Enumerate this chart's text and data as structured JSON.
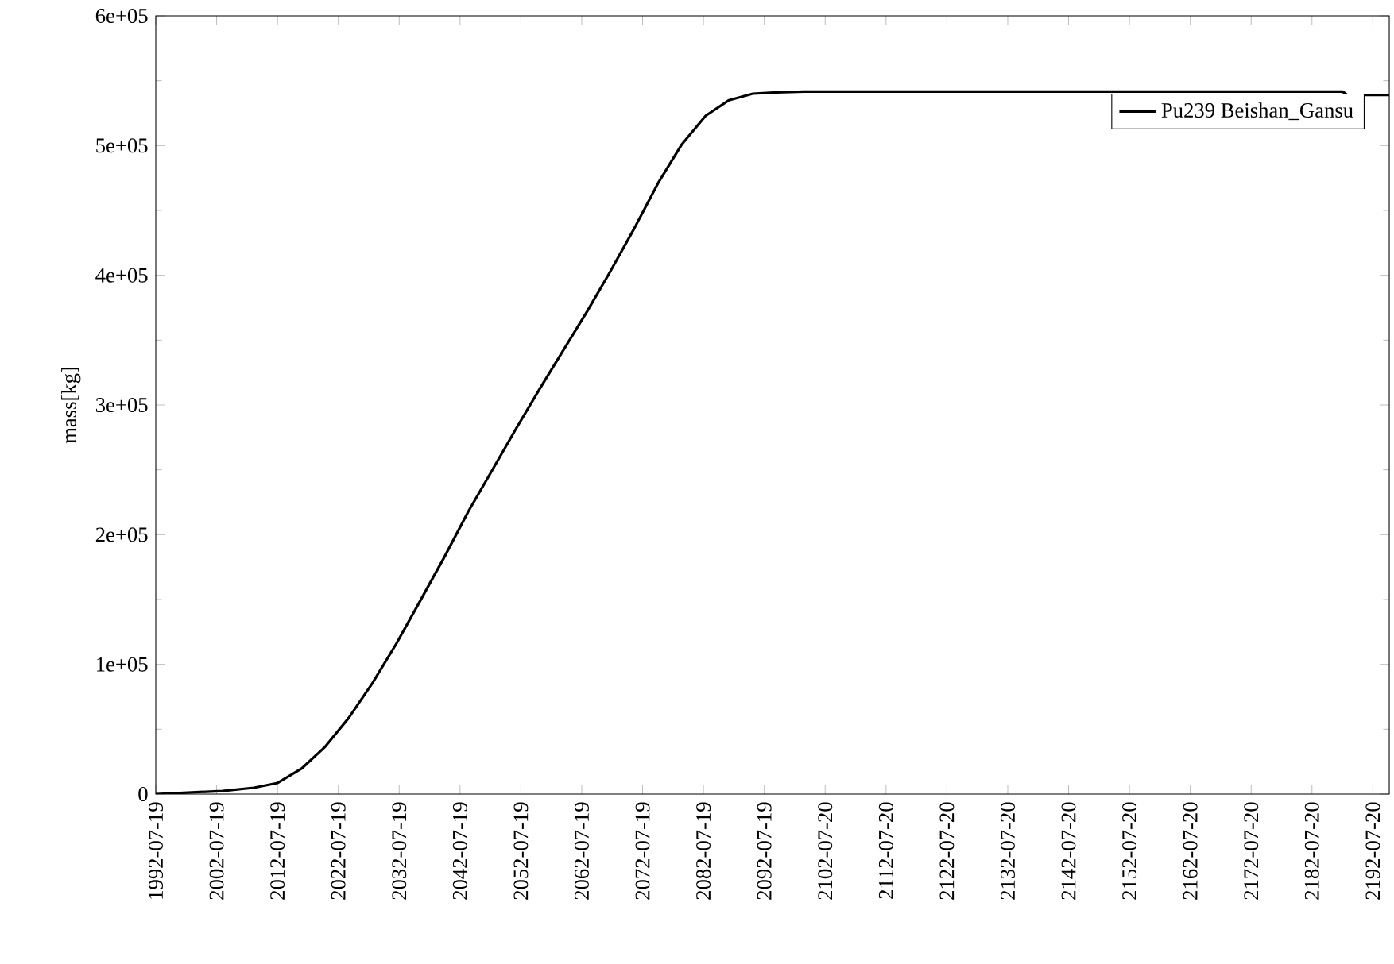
{
  "chart_data": {
    "type": "line",
    "ylabel": "mass[kg]",
    "x": [
      "1992-07-19",
      "2003-07-01",
      "2008-09-01",
      "2012-08-01",
      "2016-07-01",
      "2020-06-01",
      "2024-04-01",
      "2028-03-01",
      "2032-02-01",
      "2036-01-01",
      "2040-01-01",
      "2043-12-01",
      "2047-10-01",
      "2051-09-01",
      "2055-08-01",
      "2059-07-01",
      "2063-06-01",
      "2067-04-01",
      "2071-03-01",
      "2075-02-01",
      "2079-01-01",
      "2082-12-01",
      "2086-10-01",
      "2090-09-01",
      "2094-08-01",
      "2099-01-01",
      "2187-08-01",
      "2188-05-01",
      "2195-04-01"
    ],
    "series": [
      {
        "name": "Pu239 Beishan_Gansu",
        "color": "#000000",
        "values": [
          0,
          2400,
          4900,
          8600,
          19600,
          36700,
          58700,
          85600,
          116000,
          149000,
          183000,
          218000,
          249000,
          281000,
          312000,
          342000,
          372000,
          403000,
          436000,
          471000,
          501000,
          523000,
          535000,
          540000,
          541000,
          541600,
          541600,
          539000,
          539000
        ]
      }
    ],
    "xlim": [
      "1992-07-19",
      "2195-04-01"
    ],
    "xticks": [
      "1992-07-19",
      "2002-07-19",
      "2012-07-19",
      "2022-07-19",
      "2032-07-19",
      "2042-07-19",
      "2052-07-19",
      "2062-07-19",
      "2072-07-19",
      "2082-07-19",
      "2092-07-19",
      "2102-07-20",
      "2112-07-20",
      "2122-07-20",
      "2132-07-20",
      "2142-07-20",
      "2152-07-20",
      "2162-07-20",
      "2172-07-20",
      "2182-07-20",
      "2192-07-20"
    ],
    "ylim": [
      0,
      600000
    ],
    "yticks": [
      0,
      {
        "value": 100000,
        "label": "1e+05"
      },
      {
        "value": 200000,
        "label": "2e+05"
      },
      {
        "value": 300000,
        "label": "3e+05"
      },
      {
        "value": 400000,
        "label": "4e+05"
      },
      {
        "value": 500000,
        "label": "5e+05"
      },
      {
        "value": 600000,
        "label": "6e+05"
      }
    ],
    "grid": false,
    "legend": "top right",
    "marker": "none",
    "line_style": "solid"
  }
}
